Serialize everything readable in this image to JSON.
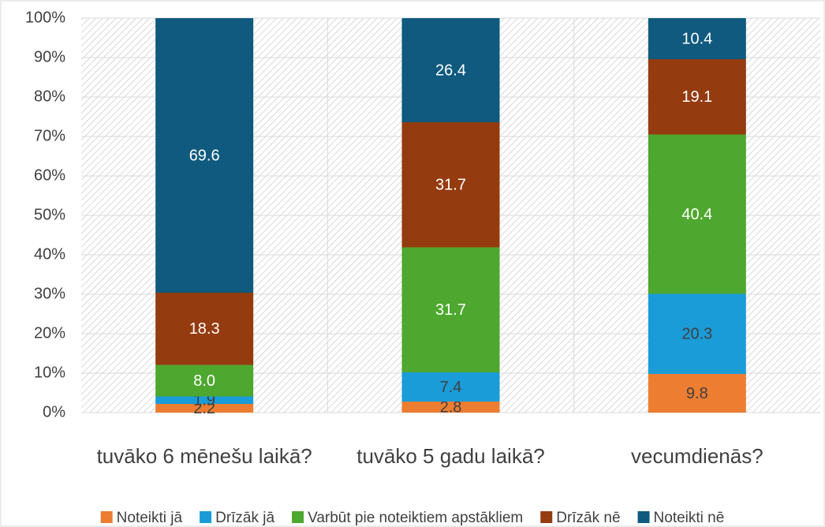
{
  "chart_data": {
    "type": "stacked_bar",
    "categories": [
      "tuvāko 6 mēnešu laikā?",
      "tuvāko 5 gadu laikā?",
      "vecumdienās?"
    ],
    "series": [
      {
        "name": "Noteikti jā",
        "color": "#ed7d31",
        "values": [
          2.2,
          2.8,
          9.8
        ]
      },
      {
        "name": "Drīzāk jā",
        "color": "#1a9cd8",
        "values": [
          1.9,
          7.4,
          20.3
        ]
      },
      {
        "name": "Varbūt pie noteiktiem apstākliem",
        "color": "#4ea72e",
        "values": [
          8,
          31.7,
          40.4
        ],
        "value_labels": [
          "8.0",
          "31.7",
          "40.4"
        ]
      },
      {
        "name": "Drīzāk nē",
        "color": "#953b10",
        "values": [
          18.3,
          31.7,
          19.1
        ]
      },
      {
        "name": "Noteikti nē",
        "color": "#0f5a7e",
        "values": [
          69.6,
          26.4,
          10.4
        ]
      }
    ],
    "ylim": [
      0,
      100
    ],
    "yticks": [
      {
        "value": 0,
        "label": "0%"
      },
      {
        "value": 10,
        "label": "10%"
      },
      {
        "value": 20,
        "label": "20%"
      },
      {
        "value": 30,
        "label": "30%"
      },
      {
        "value": 40,
        "label": "40%"
      },
      {
        "value": 50,
        "label": "50%"
      },
      {
        "value": 60,
        "label": "60%"
      },
      {
        "value": 70,
        "label": "70%"
      },
      {
        "value": 80,
        "label": "80%"
      },
      {
        "value": 90,
        "label": "90%"
      },
      {
        "value": 100,
        "label": "100%"
      }
    ],
    "grid": true,
    "legend": "bottom"
  }
}
